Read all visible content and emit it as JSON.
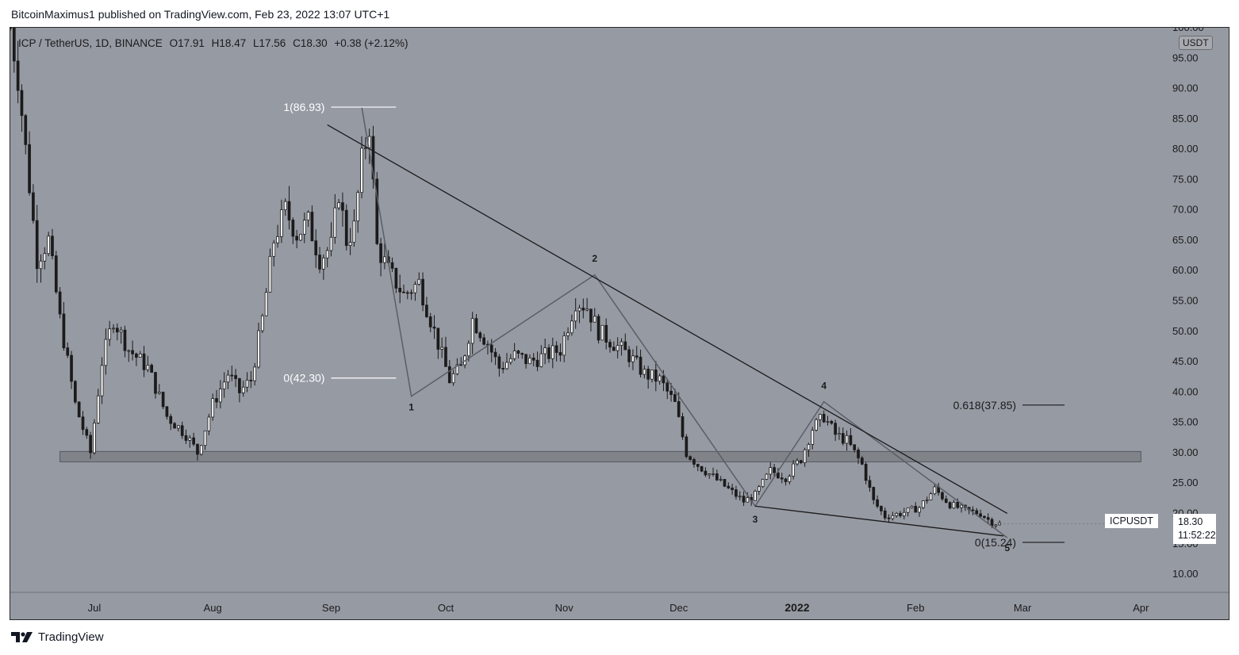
{
  "header": {
    "published_line": "BitcoinMaximus1 published on TradingView.com, Feb 23, 2022 13:07 UTC+1"
  },
  "symbol": {
    "pair": "ICP / TetherUS, 1D, BINANCE",
    "open_label": "O",
    "open": "17.91",
    "high_label": "H",
    "high": "18.47",
    "low_label": "L",
    "low": "17.56",
    "close_label": "C",
    "close": "18.30",
    "change": "+0.38 (+2.12%)"
  },
  "price_axis": {
    "currency": "USDT",
    "ticks": [
      "10.00",
      "15.00",
      "20.00",
      "25.00",
      "30.00",
      "35.00",
      "40.00",
      "45.00",
      "50.00",
      "55.00",
      "60.00",
      "65.00",
      "70.00",
      "75.00",
      "80.00",
      "85.00",
      "90.00",
      "95.00",
      "100.00"
    ]
  },
  "current": {
    "ticker": "ICPUSDT",
    "price": "18.30",
    "countdown": "11:52:22"
  },
  "time_axis": [
    "Jul",
    "Aug",
    "Sep",
    "Oct",
    "Nov",
    "Dec",
    "2022",
    "Feb",
    "Mar",
    "Apr"
  ],
  "colors": {
    "plot_bg": "#969aa3",
    "candle_body": "#ffffff",
    "candle_outline": "#1b1b1b",
    "trendline": "#1b1b1b",
    "wave_path": "#5b5e66",
    "support_zone": "#808489",
    "fib_line": "#ffffff"
  },
  "footer": {
    "brand": "TradingView"
  },
  "chart_data": {
    "type": "candlestick",
    "title": "ICP / TetherUS, 1D, BINANCE",
    "xlabel": "",
    "ylabel": "",
    "ylim": [
      7,
      100
    ],
    "ylog": false,
    "grid": false,
    "x_ticks": [
      "Jul",
      "Aug",
      "Sep",
      "Oct",
      "Nov",
      "Dec",
      "2022",
      "Feb",
      "Mar",
      "Apr"
    ],
    "price_path": [
      {
        "date": "2021-06-09",
        "price": 100
      },
      {
        "date": "2021-06-11",
        "price": 92
      },
      {
        "date": "2021-06-13",
        "price": 80
      },
      {
        "date": "2021-06-16",
        "price": 62
      },
      {
        "date": "2021-06-19",
        "price": 65
      },
      {
        "date": "2021-06-22",
        "price": 52
      },
      {
        "date": "2021-06-26",
        "price": 38
      },
      {
        "date": "2021-06-30",
        "price": 30
      },
      {
        "date": "2021-07-03",
        "price": 45
      },
      {
        "date": "2021-07-06",
        "price": 52
      },
      {
        "date": "2021-07-10",
        "price": 47
      },
      {
        "date": "2021-07-15",
        "price": 44
      },
      {
        "date": "2021-07-20",
        "price": 36
      },
      {
        "date": "2021-07-25",
        "price": 33
      },
      {
        "date": "2021-07-28",
        "price": 30
      },
      {
        "date": "2021-08-01",
        "price": 38
      },
      {
        "date": "2021-08-05",
        "price": 43
      },
      {
        "date": "2021-08-08",
        "price": 40
      },
      {
        "date": "2021-08-11",
        "price": 42
      },
      {
        "date": "2021-08-14",
        "price": 52
      },
      {
        "date": "2021-08-17",
        "price": 65
      },
      {
        "date": "2021-08-20",
        "price": 70
      },
      {
        "date": "2021-08-23",
        "price": 66
      },
      {
        "date": "2021-08-26",
        "price": 68
      },
      {
        "date": "2021-08-29",
        "price": 62
      },
      {
        "date": "2021-09-01",
        "price": 64
      },
      {
        "date": "2021-09-03",
        "price": 73
      },
      {
        "date": "2021-09-05",
        "price": 65
      },
      {
        "date": "2021-09-07",
        "price": 67
      },
      {
        "date": "2021-09-09",
        "price": 78
      },
      {
        "date": "2021-09-11",
        "price": 84
      },
      {
        "date": "2021-09-13",
        "price": 64
      },
      {
        "date": "2021-09-16",
        "price": 60
      },
      {
        "date": "2021-09-20",
        "price": 56
      },
      {
        "date": "2021-09-24",
        "price": 58
      },
      {
        "date": "2021-09-28",
        "price": 50
      },
      {
        "date": "2021-10-02",
        "price": 42
      },
      {
        "date": "2021-10-05",
        "price": 44
      },
      {
        "date": "2021-10-08",
        "price": 52
      },
      {
        "date": "2021-10-12",
        "price": 48
      },
      {
        "date": "2021-10-15",
        "price": 44
      },
      {
        "date": "2021-10-19",
        "price": 46
      },
      {
        "date": "2021-10-23",
        "price": 45
      },
      {
        "date": "2021-10-27",
        "price": 46
      },
      {
        "date": "2021-10-31",
        "price": 47
      },
      {
        "date": "2021-11-04",
        "price": 55
      },
      {
        "date": "2021-11-07",
        "price": 54
      },
      {
        "date": "2021-11-10",
        "price": 50
      },
      {
        "date": "2021-11-14",
        "price": 48
      },
      {
        "date": "2021-11-18",
        "price": 46
      },
      {
        "date": "2021-11-22",
        "price": 43
      },
      {
        "date": "2021-11-26",
        "price": 42
      },
      {
        "date": "2021-11-30",
        "price": 38
      },
      {
        "date": "2021-12-03",
        "price": 30
      },
      {
        "date": "2021-12-06",
        "price": 28
      },
      {
        "date": "2021-12-10",
        "price": 26
      },
      {
        "date": "2021-12-14",
        "price": 24
      },
      {
        "date": "2021-12-18",
        "price": 22
      },
      {
        "date": "2021-12-21",
        "price": 23
      },
      {
        "date": "2021-12-25",
        "price": 27
      },
      {
        "date": "2021-12-29",
        "price": 26
      },
      {
        "date": "2022-01-02",
        "price": 29
      },
      {
        "date": "2022-01-05",
        "price": 34
      },
      {
        "date": "2022-01-08",
        "price": 36
      },
      {
        "date": "2022-01-11",
        "price": 33
      },
      {
        "date": "2022-01-14",
        "price": 32
      },
      {
        "date": "2022-01-18",
        "price": 28
      },
      {
        "date": "2022-01-21",
        "price": 22
      },
      {
        "date": "2022-01-24",
        "price": 19.5
      },
      {
        "date": "2022-01-28",
        "price": 20
      },
      {
        "date": "2022-02-02",
        "price": 21
      },
      {
        "date": "2022-02-06",
        "price": 24
      },
      {
        "date": "2022-02-10",
        "price": 21.5
      },
      {
        "date": "2022-02-14",
        "price": 20.5
      },
      {
        "date": "2022-02-18",
        "price": 20
      },
      {
        "date": "2022-02-21",
        "price": 18.5
      },
      {
        "date": "2022-02-23",
        "price": 18.3
      }
    ],
    "support_zone": {
      "from": "2021-06-22",
      "to": "2022-04-01",
      "low": 28.5,
      "high": 30.2
    },
    "trendlines": [
      {
        "from": {
          "date": "2021-08-31",
          "price": 84
        },
        "to": {
          "date": "2022-02-25",
          "price": 20
        }
      },
      {
        "from": {
          "date": "2021-12-21",
          "price": 21.2
        },
        "to": {
          "date": "2022-02-24",
          "price": 16.3
        }
      }
    ],
    "wave_path": [
      {
        "date": "2021-09-09",
        "price": 86.93
      },
      {
        "date": "2021-09-22",
        "price": 39.3
      },
      {
        "date": "2021-11-09",
        "price": 59.3
      },
      {
        "date": "2021-12-21",
        "price": 21.2
      },
      {
        "date": "2022-01-08",
        "price": 38.4
      },
      {
        "date": "2022-02-25",
        "price": 16
      }
    ],
    "wave_labels": [
      {
        "label": "1",
        "date": "2021-09-22",
        "price": 37
      },
      {
        "label": "2",
        "date": "2021-11-09",
        "price": 61.5
      },
      {
        "label": "3",
        "date": "2021-12-21",
        "price": 18.5
      },
      {
        "label": "4",
        "date": "2022-01-08",
        "price": 40.5
      },
      {
        "label": "5",
        "date": "2022-02-25",
        "price": 13.8
      }
    ],
    "fib_levels": [
      {
        "label": "1(86.93)",
        "value": 86.93,
        "from": "2021-09-01",
        "to": "2021-09-18"
      },
      {
        "label": "0(42.30)",
        "value": 42.3,
        "from": "2021-09-01",
        "to": "2021-09-18"
      },
      {
        "label": "0.618(37.85)",
        "value": 37.85,
        "from": "2022-03-01",
        "to": "2022-03-12"
      },
      {
        "label": "0(15.24)",
        "value": 15.24,
        "from": "2022-03-01",
        "to": "2022-03-12"
      }
    ]
  }
}
